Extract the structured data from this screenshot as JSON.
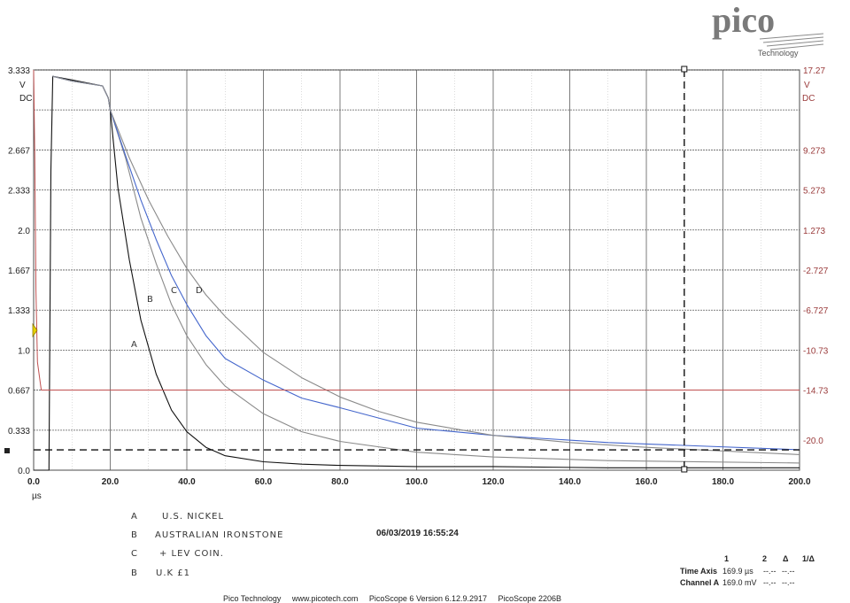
{
  "brand": {
    "name": "pico",
    "sub": "Technology"
  },
  "colors": {
    "grid": "#5a5a5a",
    "axis": "#222222",
    "right_axis": "#9a3b3b",
    "blue": "#4466cc",
    "gray": "#8a8a8a",
    "red": "#c05050",
    "black": "#111111"
  },
  "timestamp": "06/03/2019 16:55:24",
  "footer": "Pico Technology     www.picotech.com     PicoScope 6 Version 6.12.9.2917     PicoScope 2206B",
  "legend_notes": [
    {
      "key": "A",
      "text": "U.S. NICKEL"
    },
    {
      "key": "B",
      "text": "AUSTRALIAN IRONSTONE"
    },
    {
      "key": "C",
      "text": "+ LEV COIN."
    },
    {
      "key": "B",
      "text": "U.K £1"
    }
  ],
  "readout": {
    "headers": [
      "1",
      "2",
      "Δ",
      "1/Δ"
    ],
    "rows": [
      {
        "label": "Time Axis",
        "v1": "169.9 µs",
        "v2": "--.--",
        "v3": "--.--"
      },
      {
        "label": "Channel A",
        "v1": "169.0 mV",
        "v2": "--.--",
        "v3": "--.--"
      }
    ]
  },
  "curve_labels": [
    "A",
    "B",
    "C",
    "D"
  ],
  "chart_data": {
    "type": "line",
    "xlabel": "µs",
    "xlim": [
      0,
      200
    ],
    "ylim": [
      0,
      3.333
    ],
    "y_unit": "V",
    "y_coupling": "DC",
    "right_axis_unit": "V",
    "right_axis_coupling": "DC",
    "x_ticks": [
      "0.0",
      "20.0",
      "40.0",
      "60.0",
      "80.0",
      "100.0",
      "120.0",
      "140.0",
      "160.0",
      "180.0",
      "200.0"
    ],
    "y_ticks": [
      {
        "v": 0,
        "label": "0.0"
      },
      {
        "v": 0.333,
        "label": "0.333"
      },
      {
        "v": 0.667,
        "label": "0.667"
      },
      {
        "v": 1.0,
        "label": "1.0"
      },
      {
        "v": 1.333,
        "label": "1.333"
      },
      {
        "v": 1.667,
        "label": "1.667"
      },
      {
        "v": 2.0,
        "label": "2.0"
      },
      {
        "v": 2.333,
        "label": "2.333"
      },
      {
        "v": 2.667,
        "label": "2.667"
      },
      {
        "v": 3.333,
        "label": "3.333"
      }
    ],
    "right_ticks": [
      {
        "v": 3.333,
        "label": "17.27"
      },
      {
        "v": 2.667,
        "label": "9.273"
      },
      {
        "v": 2.333,
        "label": "5.273"
      },
      {
        "v": 2.0,
        "label": "1.273"
      },
      {
        "v": 1.667,
        "label": "-2.727"
      },
      {
        "v": 1.333,
        "label": "-6.727"
      },
      {
        "v": 1.0,
        "label": "-10.73"
      },
      {
        "v": 0.667,
        "label": "-14.73"
      },
      {
        "v": 0.25,
        "label": "-20.0"
      }
    ],
    "cursors": {
      "time_us": 169.9,
      "level_v": 0.169
    },
    "reference_level_v": 0.667,
    "series": [
      {
        "color": "#111111",
        "x": [
          0,
          4,
          4.5,
          5,
          10,
          18,
          19.5,
          20,
          22,
          25,
          28,
          32,
          36,
          40,
          45,
          50,
          60,
          70,
          80,
          100,
          120,
          150,
          200
        ],
        "y": [
          0.0,
          0.0,
          2.5,
          3.28,
          3.25,
          3.2,
          3.1,
          3.0,
          2.35,
          1.75,
          1.25,
          0.8,
          0.5,
          0.32,
          0.19,
          0.12,
          0.07,
          0.05,
          0.04,
          0.03,
          0.03,
          0.02,
          0.02
        ]
      },
      {
        "color": "#8a8a8a",
        "x": [
          5,
          10,
          18,
          19.5,
          20,
          24,
          28,
          32,
          36,
          40,
          45,
          50,
          60,
          70,
          80,
          100,
          120,
          150,
          200
        ],
        "y": [
          3.28,
          3.24,
          3.2,
          3.1,
          3.0,
          2.6,
          2.1,
          1.72,
          1.38,
          1.12,
          0.88,
          0.7,
          0.47,
          0.32,
          0.24,
          0.15,
          0.11,
          0.08,
          0.06
        ]
      },
      {
        "color": "#4466cc",
        "x": [
          5,
          10,
          18,
          19.5,
          20,
          24,
          28,
          32,
          36,
          40,
          45,
          50,
          60,
          70,
          80,
          100,
          120,
          150,
          200
        ],
        "y": [
          3.28,
          3.24,
          3.2,
          3.1,
          3.0,
          2.62,
          2.25,
          1.92,
          1.62,
          1.38,
          1.12,
          0.93,
          0.75,
          0.6,
          0.52,
          0.35,
          0.29,
          0.23,
          0.17
        ]
      },
      {
        "color": "#8a8a8a",
        "x": [
          5,
          10,
          18,
          19.5,
          20,
          25,
          30,
          35,
          40,
          45,
          50,
          60,
          70,
          80,
          90,
          100,
          120,
          140,
          160,
          200
        ],
        "y": [
          3.28,
          3.24,
          3.2,
          3.1,
          3.0,
          2.6,
          2.25,
          1.95,
          1.68,
          1.46,
          1.28,
          0.98,
          0.77,
          0.61,
          0.49,
          0.4,
          0.29,
          0.23,
          0.19,
          0.13
        ]
      },
      {
        "color": "#c05050",
        "x": [
          0,
          0.3,
          0.6,
          1,
          2,
          200
        ],
        "y": [
          3.333,
          2.6,
          1.5,
          0.9,
          0.667,
          0.667
        ]
      }
    ]
  }
}
